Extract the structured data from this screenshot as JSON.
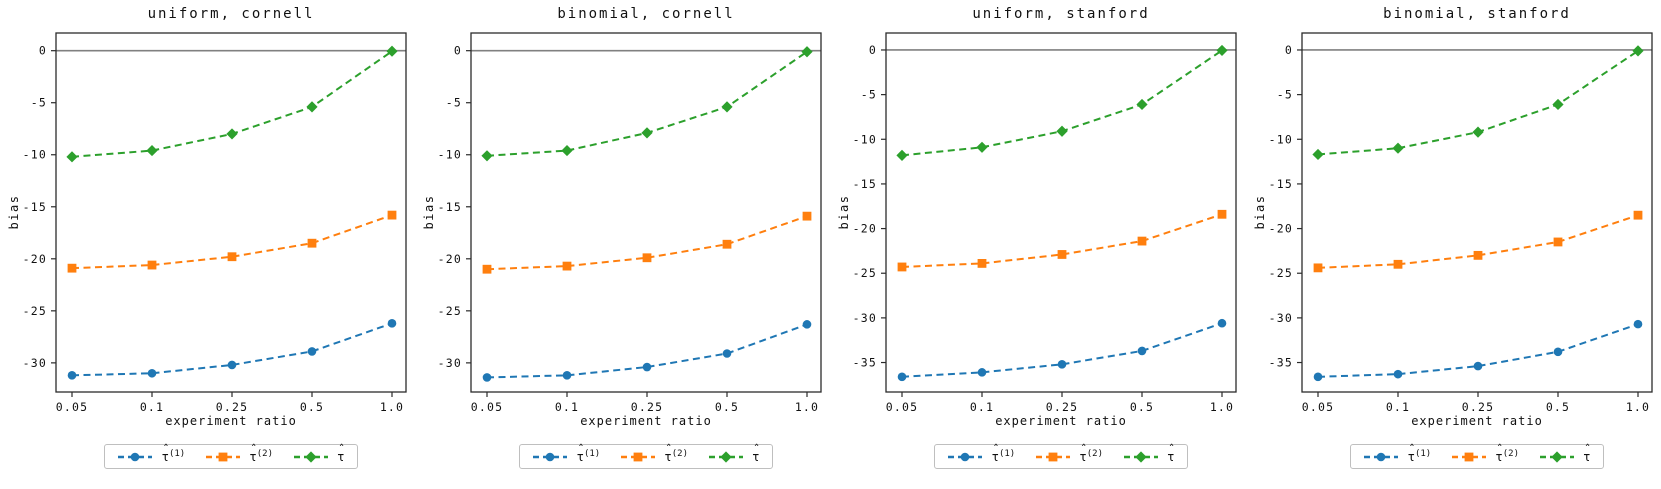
{
  "figure": {
    "background": "#ffffff",
    "frame_color": "#2b2b2b",
    "tick_color": "#2b2b2b",
    "zero_line_color": "#808080",
    "accent_colors": {
      "blue": "#1f77b4",
      "orange": "#ff7f0e",
      "green": "#2ca02c"
    }
  },
  "legend": {
    "items": [
      {
        "name": "tau-hat-1",
        "color": "#1f77b4",
        "marker": "circle",
        "base": "τ",
        "hat": "ˆ",
        "sup": "(1)"
      },
      {
        "name": "tau-hat-2",
        "color": "#ff7f0e",
        "marker": "square",
        "base": "τ",
        "hat": "ˆ",
        "sup": "(2)"
      },
      {
        "name": "tau-hat",
        "color": "#2ca02c",
        "marker": "diamond",
        "base": "τ",
        "hat": "ˆ",
        "sup": ""
      }
    ]
  },
  "chart_data": [
    {
      "type": "line",
      "title": "uniform, cornell",
      "xlabel": "experiment ratio",
      "ylabel": "bias",
      "x_categories": [
        "0.05",
        "0.1",
        "0.25",
        "0.5",
        "1.0"
      ],
      "x_scale": "categorical-equally-spaced",
      "ylim": [
        -32.8,
        1.7
      ],
      "yticks": [
        0,
        -5,
        -10,
        -15,
        -20,
        -25,
        -30
      ],
      "grid": false,
      "zero_line": true,
      "legend_labels": [
        "τ̂(1)",
        "τ̂(2)",
        "τ̂"
      ],
      "legend_position": "below",
      "series": [
        {
          "name": "tau_hat_1",
          "color": "#1f77b4",
          "marker": "circle",
          "linestyle": "dashed",
          "values": [
            -31.2,
            -31.0,
            -30.2,
            -28.9,
            -26.2
          ]
        },
        {
          "name": "tau_hat_2",
          "color": "#ff7f0e",
          "marker": "square",
          "linestyle": "dashed",
          "values": [
            -20.9,
            -20.6,
            -19.8,
            -18.5,
            -15.8
          ]
        },
        {
          "name": "tau_hat",
          "color": "#2ca02c",
          "marker": "diamond",
          "linestyle": "dashed",
          "values": [
            -10.2,
            -9.6,
            -8.0,
            -5.4,
            -0.05
          ]
        }
      ]
    },
    {
      "type": "line",
      "title": "binomial, cornell",
      "xlabel": "experiment ratio",
      "ylabel": "bias",
      "x_categories": [
        "0.05",
        "0.1",
        "0.25",
        "0.5",
        "1.0"
      ],
      "x_scale": "categorical-equally-spaced",
      "ylim": [
        -32.8,
        1.7
      ],
      "yticks": [
        0,
        -5,
        -10,
        -15,
        -20,
        -25,
        -30
      ],
      "grid": false,
      "zero_line": true,
      "legend_labels": [
        "τ̂(1)",
        "τ̂(2)",
        "τ̂"
      ],
      "legend_position": "below",
      "series": [
        {
          "name": "tau_hat_1",
          "color": "#1f77b4",
          "marker": "circle",
          "linestyle": "dashed",
          "values": [
            -31.4,
            -31.2,
            -30.4,
            -29.1,
            -26.3
          ]
        },
        {
          "name": "tau_hat_2",
          "color": "#ff7f0e",
          "marker": "square",
          "linestyle": "dashed",
          "values": [
            -21.0,
            -20.7,
            -19.9,
            -18.6,
            -15.9
          ]
        },
        {
          "name": "tau_hat",
          "color": "#2ca02c",
          "marker": "diamond",
          "linestyle": "dashed",
          "values": [
            -10.1,
            -9.6,
            -7.9,
            -5.4,
            -0.1
          ]
        }
      ]
    },
    {
      "type": "line",
      "title": "uniform, stanford",
      "xlabel": "experiment ratio",
      "ylabel": "bias",
      "x_categories": [
        "0.05",
        "0.1",
        "0.25",
        "0.5",
        "1.0"
      ],
      "x_scale": "categorical-equally-spaced",
      "ylim": [
        -38.3,
        1.9
      ],
      "yticks": [
        0,
        -5,
        -10,
        -15,
        -20,
        -25,
        -30,
        -35
      ],
      "grid": false,
      "zero_line": true,
      "legend_labels": [
        "τ̂(1)",
        "τ̂(2)",
        "τ̂"
      ],
      "legend_position": "below",
      "series": [
        {
          "name": "tau_hat_1",
          "color": "#1f77b4",
          "marker": "circle",
          "linestyle": "dashed",
          "values": [
            -36.6,
            -36.1,
            -35.2,
            -33.7,
            -30.6
          ]
        },
        {
          "name": "tau_hat_2",
          "color": "#ff7f0e",
          "marker": "square",
          "linestyle": "dashed",
          "values": [
            -24.3,
            -23.9,
            -22.9,
            -21.4,
            -18.4
          ]
        },
        {
          "name": "tau_hat",
          "color": "#2ca02c",
          "marker": "diamond",
          "linestyle": "dashed",
          "values": [
            -11.8,
            -10.9,
            -9.1,
            -6.1,
            -0.05
          ]
        }
      ]
    },
    {
      "type": "line",
      "title": "binomial, stanford",
      "xlabel": "experiment ratio",
      "ylabel": "bias",
      "x_categories": [
        "0.05",
        "0.1",
        "0.25",
        "0.5",
        "1.0"
      ],
      "x_scale": "categorical-equally-spaced",
      "ylim": [
        -38.3,
        1.9
      ],
      "yticks": [
        0,
        -5,
        -10,
        -15,
        -20,
        -25,
        -30,
        -35
      ],
      "grid": false,
      "zero_line": true,
      "legend_labels": [
        "τ̂(1)",
        "τ̂(2)",
        "τ̂"
      ],
      "legend_position": "below",
      "series": [
        {
          "name": "tau_hat_1",
          "color": "#1f77b4",
          "marker": "circle",
          "linestyle": "dashed",
          "values": [
            -36.6,
            -36.3,
            -35.4,
            -33.8,
            -30.7
          ]
        },
        {
          "name": "tau_hat_2",
          "color": "#ff7f0e",
          "marker": "square",
          "linestyle": "dashed",
          "values": [
            -24.4,
            -24.0,
            -23.0,
            -21.5,
            -18.5
          ]
        },
        {
          "name": "tau_hat",
          "color": "#2ca02c",
          "marker": "diamond",
          "linestyle": "dashed",
          "values": [
            -11.7,
            -11.0,
            -9.2,
            -6.1,
            -0.1
          ]
        }
      ]
    }
  ]
}
